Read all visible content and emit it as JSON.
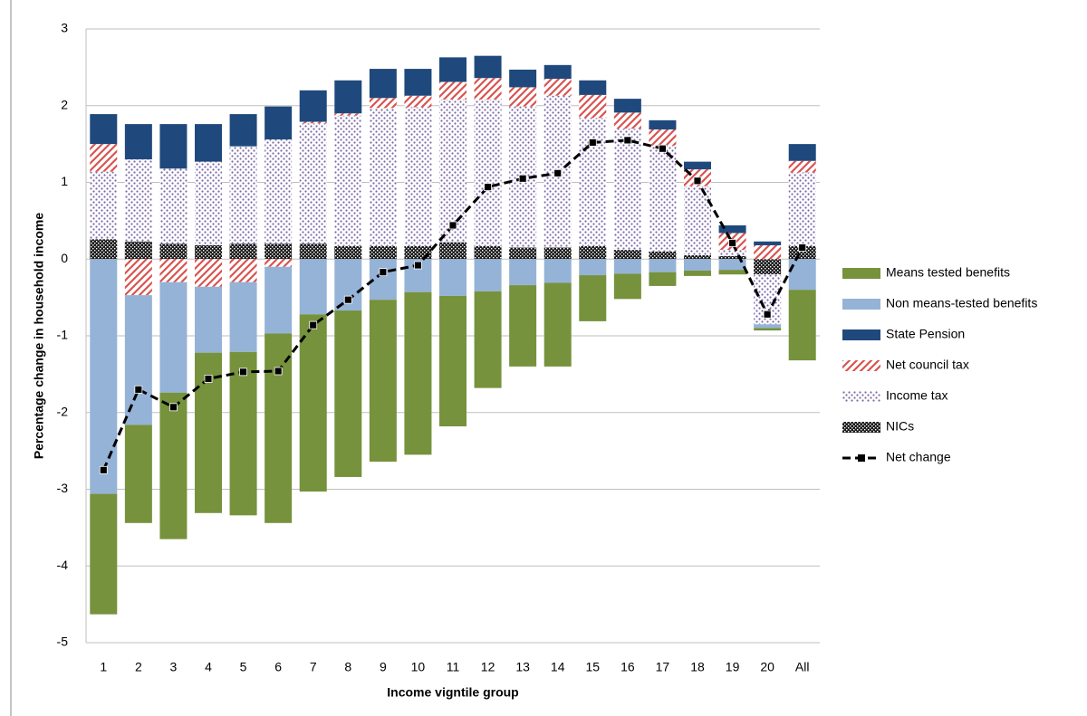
{
  "chart_data": {
    "type": "bar",
    "x_label": "Income vigntile group",
    "y_label": "Percentage change in household income",
    "categories": [
      "1",
      "2",
      "3",
      "4",
      "5",
      "6",
      "7",
      "8",
      "9",
      "10",
      "11",
      "12",
      "13",
      "14",
      "15",
      "16",
      "17",
      "18",
      "19",
      "20",
      "All"
    ],
    "ylim": [
      -5,
      3
    ],
    "yticks": [
      -5,
      -4,
      -3,
      -2,
      -1,
      0,
      1,
      2,
      3
    ],
    "grid": true,
    "legend": "right",
    "series": [
      {
        "name": "NICs",
        "type": "bar",
        "color": "#1a1a1a",
        "pattern": "cross",
        "values": [
          0.26,
          0.23,
          0.2,
          0.18,
          0.2,
          0.2,
          0.2,
          0.17,
          0.17,
          0.17,
          0.22,
          0.17,
          0.15,
          0.15,
          0.17,
          0.12,
          0.1,
          0.05,
          0.04,
          -0.2,
          0.17
        ]
      },
      {
        "name": "Income tax",
        "type": "bar",
        "color": "#7b68a6",
        "pattern": "dots",
        "values": [
          0.88,
          1.07,
          0.98,
          1.09,
          1.27,
          1.36,
          1.57,
          1.7,
          1.8,
          1.81,
          1.86,
          1.91,
          1.84,
          1.98,
          1.67,
          1.58,
          1.38,
          0.9,
          0.08,
          -0.65,
          0.96
        ]
      },
      {
        "name": "Net council tax",
        "type": "bar",
        "color": "#d9534f",
        "pattern": "hatch",
        "values": [
          0.36,
          -0.47,
          -0.3,
          -0.36,
          -0.3,
          -0.1,
          0.02,
          0.03,
          0.13,
          0.15,
          0.23,
          0.28,
          0.25,
          0.22,
          0.3,
          0.21,
          0.21,
          0.22,
          0.22,
          0.18,
          0.15
        ]
      },
      {
        "name": "State Pension",
        "type": "bar",
        "color": "#1f497d",
        "pattern": "solid",
        "values": [
          0.39,
          0.46,
          0.58,
          0.49,
          0.42,
          0.43,
          0.41,
          0.43,
          0.38,
          0.35,
          0.32,
          0.29,
          0.23,
          0.18,
          0.19,
          0.18,
          0.12,
          0.1,
          0.1,
          0.05,
          0.22
        ]
      },
      {
        "name": "Non means-tested benefits",
        "type": "bar",
        "color": "#95b3d7",
        "pattern": "solid",
        "values": [
          -3.06,
          -1.69,
          -1.44,
          -0.86,
          -0.91,
          -0.87,
          -0.72,
          -0.67,
          -0.53,
          -0.43,
          -0.48,
          -0.42,
          -0.34,
          -0.31,
          -0.21,
          -0.19,
          -0.17,
          -0.15,
          -0.14,
          -0.05,
          -0.4
        ]
      },
      {
        "name": "Means tested benefits",
        "type": "bar",
        "color": "#76923c",
        "pattern": "solid",
        "values": [
          -1.57,
          -1.28,
          -1.91,
          -2.09,
          -2.13,
          -2.47,
          -2.31,
          -2.17,
          -2.11,
          -2.12,
          -1.7,
          -1.26,
          -1.06,
          -1.09,
          -0.6,
          -0.33,
          -0.18,
          -0.07,
          -0.06,
          -0.03,
          -0.92
        ]
      },
      {
        "name": "Net change",
        "type": "line",
        "color": "#000000",
        "pattern": "dashed",
        "values": [
          -2.75,
          -1.7,
          -1.93,
          -1.56,
          -1.47,
          -1.46,
          -0.86,
          -0.53,
          -0.17,
          -0.08,
          0.44,
          0.94,
          1.05,
          1.12,
          1.52,
          1.55,
          1.44,
          1.02,
          0.21,
          -0.72,
          0.15
        ]
      }
    ],
    "legend_order": [
      5,
      4,
      3,
      2,
      1,
      0,
      6
    ]
  }
}
